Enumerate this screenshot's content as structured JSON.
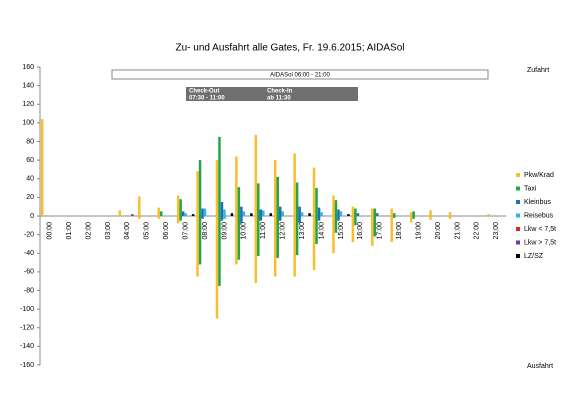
{
  "chart_data": {
    "type": "bar",
    "title": "Zu- und Ausfahrt alle Gates, Fr. 19.6.2015; AIDASol",
    "annotations": [
      "AIDASol 06:00 - 21:00",
      "Check-Out",
      "07:30  - 11:00",
      "Check-In",
      "ab 11:30"
    ],
    "y_label_top": "Zufahrt",
    "y_label_bottom": "Ausfahrt",
    "categories": [
      "00:00",
      "01:00",
      "02:00",
      "03:00",
      "04:00",
      "05:00",
      "06:00",
      "07:00",
      "08:00",
      "09:00",
      "10:00",
      "11:00",
      "12:00",
      "13:00",
      "14:00",
      "15:00",
      "16:00",
      "17:00",
      "18:00",
      "19:00",
      "20:00",
      "21:00",
      "22:00",
      "23:00"
    ],
    "series": [
      {
        "name": "Pkw/Krad",
        "color": "#f9be2c",
        "values": [
          104,
          0,
          0,
          0,
          6,
          21,
          9,
          22,
          48,
          60,
          64,
          87,
          60,
          67,
          52,
          22,
          10,
          8,
          8,
          4,
          6,
          4,
          0,
          2
        ],
        "values_out": [
          0,
          0,
          0,
          0,
          0,
          -3,
          -3,
          -8,
          -65,
          -110,
          -52,
          -72,
          -65,
          -65,
          -58,
          -40,
          -28,
          -32,
          -28,
          -7,
          -4,
          -3,
          0,
          0
        ]
      },
      {
        "name": "Taxi",
        "color": "#21a64b",
        "values": [
          0,
          0,
          0,
          0,
          0,
          0,
          5,
          18,
          60,
          85,
          31,
          35,
          42,
          36,
          30,
          17,
          8,
          8,
          3,
          5,
          0,
          0,
          0,
          0
        ],
        "values_out": [
          0,
          0,
          0,
          0,
          0,
          0,
          0,
          -5,
          -52,
          -75,
          -47,
          -43,
          -45,
          -42,
          -30,
          -18,
          -10,
          -22,
          -2,
          -3,
          0,
          0,
          0,
          0
        ]
      },
      {
        "name": "Kleinbus",
        "color": "#1f6fb8",
        "values": [
          0,
          0,
          0,
          0,
          0,
          0,
          0,
          5,
          8,
          15,
          10,
          7,
          10,
          10,
          9,
          7,
          3,
          3,
          0,
          0,
          0,
          0,
          0,
          0
        ],
        "values_out": [
          0,
          0,
          0,
          0,
          0,
          0,
          0,
          0,
          -3,
          -5,
          -8,
          -5,
          -5,
          -7,
          -5,
          -5,
          0,
          0,
          0,
          0,
          0,
          0,
          0,
          0
        ]
      },
      {
        "name": "Reisebus",
        "color": "#2cb5e5",
        "values": [
          0,
          0,
          0,
          0,
          0,
          0,
          0,
          3,
          8,
          7,
          5,
          6,
          5,
          4,
          4,
          5,
          0,
          0,
          0,
          0,
          0,
          0,
          0,
          0
        ],
        "values_out": [
          0,
          0,
          0,
          0,
          0,
          0,
          0,
          0,
          0,
          -3,
          0,
          0,
          0,
          0,
          0,
          0,
          0,
          0,
          0,
          0,
          0,
          0,
          0,
          0
        ]
      },
      {
        "name": "Lkw < 7,5t",
        "color": "#e0261d",
        "values": [
          0,
          0,
          0,
          0,
          0,
          0,
          0,
          0,
          0,
          0,
          0,
          0,
          0,
          0,
          0,
          0,
          0,
          0,
          0,
          0,
          0,
          0,
          0,
          0
        ],
        "values_out": [
          0,
          0,
          0,
          0,
          0,
          0,
          0,
          0,
          0,
          0,
          0,
          0,
          0,
          0,
          0,
          0,
          0,
          0,
          0,
          0,
          0,
          0,
          0,
          0
        ]
      },
      {
        "name": "Lkw > 7,5t",
        "color": "#6a3d9a",
        "values": [
          0,
          0,
          0,
          0,
          2,
          0,
          0,
          0,
          0,
          0,
          0,
          0,
          0,
          0,
          0,
          0,
          0,
          0,
          0,
          0,
          0,
          0,
          0,
          0
        ],
        "values_out": [
          0,
          0,
          0,
          0,
          0,
          0,
          0,
          0,
          0,
          0,
          0,
          0,
          0,
          0,
          0,
          0,
          0,
          0,
          0,
          0,
          0,
          0,
          0,
          0
        ]
      },
      {
        "name": "LZ/SZ",
        "color": "#000000",
        "values": [
          0,
          0,
          0,
          0,
          0,
          0,
          0,
          2,
          0,
          3,
          3,
          3,
          0,
          3,
          0,
          2,
          0,
          0,
          0,
          0,
          0,
          0,
          0,
          0
        ],
        "values_out": [
          0,
          0,
          0,
          0,
          0,
          0,
          0,
          0,
          0,
          0,
          0,
          0,
          0,
          0,
          0,
          0,
          0,
          0,
          0,
          0,
          0,
          0,
          0,
          0
        ]
      }
    ],
    "ylim": [
      -160,
      160
    ],
    "yticks": [
      -160,
      -140,
      -120,
      -100,
      -80,
      -60,
      -40,
      -20,
      0,
      20,
      40,
      60,
      80,
      100,
      120,
      140,
      160
    ]
  }
}
